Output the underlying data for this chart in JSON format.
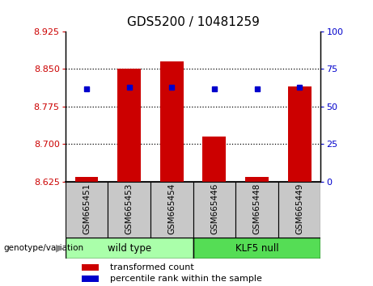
{
  "title": "GDS5200 / 10481259",
  "samples": [
    "GSM665451",
    "GSM665453",
    "GSM665454",
    "GSM665446",
    "GSM665448",
    "GSM665449"
  ],
  "transformed_count": [
    8.634,
    8.85,
    8.865,
    8.715,
    8.634,
    8.815
  ],
  "percentile_rank": [
    62,
    63,
    63,
    62,
    62,
    63
  ],
  "ylim_left": [
    8.625,
    8.925
  ],
  "ylim_right": [
    0,
    100
  ],
  "yticks_left": [
    8.625,
    8.7,
    8.775,
    8.85,
    8.925
  ],
  "yticks_right": [
    0,
    25,
    50,
    75,
    100
  ],
  "bar_color": "#cc0000",
  "marker_color": "#0000cc",
  "bar_bottom": 8.625,
  "wild_type_color": "#aaffaa",
  "klf5_null_color": "#55dd55",
  "label_area_color": "#c8c8c8",
  "genotype_label": "genotype/variation",
  "legend_red_label": "transformed count",
  "legend_blue_label": "percentile rank within the sample",
  "bar_width": 0.55,
  "title_fontsize": 11,
  "tick_fontsize": 8,
  "sample_fontsize": 7.5,
  "legend_fontsize": 8,
  "geno_fontsize": 8.5
}
